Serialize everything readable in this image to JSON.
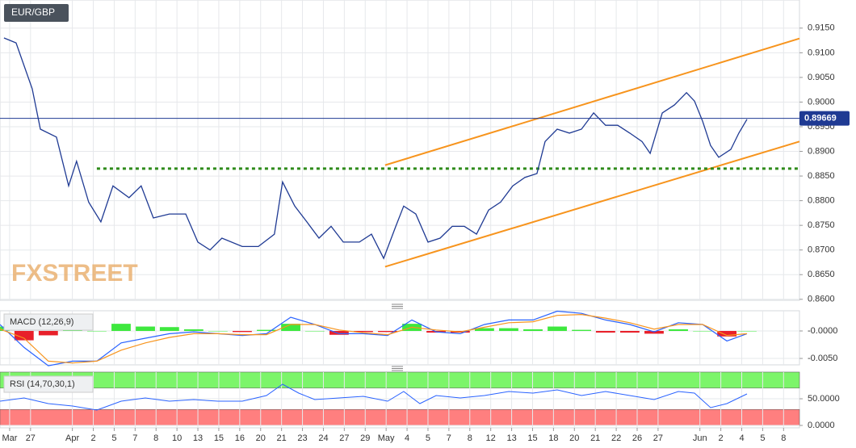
{
  "chart_data": [
    {
      "type": "line",
      "title": "EUR/GBP",
      "watermark": "FXSTREET",
      "color": "#1f3a93",
      "x": [
        -0.27,
        0.31,
        1.08,
        1.47,
        2.24,
        2.82,
        3.2,
        3.78,
        4.36,
        4.94,
        5.71,
        6.29,
        6.87,
        7.64,
        8.42,
        9.0,
        9.58,
        10.15,
        11.12,
        11.89,
        12.66,
        13.05,
        13.63,
        14.21,
        14.79,
        15.37,
        15.95,
        16.72,
        17.3,
        17.88,
        18.46,
        18.84,
        19.42,
        20.0,
        20.58,
        21.16,
        21.74,
        22.32,
        22.9,
        23.47,
        24.05,
        24.63,
        25.21,
        25.6,
        26.18,
        26.76,
        27.34,
        27.92,
        28.49,
        29.07,
        29.65,
        30.23,
        30.62,
        31.2,
        31.78,
        32.36,
        32.74,
        33.13,
        33.51,
        33.9,
        34.48,
        34.86,
        35.25
      ],
      "values": [
        0.913,
        0.912,
        0.9027,
        0.8945,
        0.8929,
        0.883,
        0.888,
        0.8797,
        0.8757,
        0.883,
        0.8806,
        0.883,
        0.8765,
        0.8773,
        0.8773,
        0.8716,
        0.87,
        0.8724,
        0.8707,
        0.8707,
        0.8732,
        0.8838,
        0.8789,
        0.8757,
        0.8724,
        0.8748,
        0.8716,
        0.8716,
        0.8732,
        0.8683,
        0.8748,
        0.8789,
        0.8773,
        0.8716,
        0.8724,
        0.8748,
        0.8748,
        0.8732,
        0.8781,
        0.8797,
        0.883,
        0.8847,
        0.8855,
        0.892,
        0.8945,
        0.8937,
        0.8945,
        0.8978,
        0.8953,
        0.8953,
        0.8937,
        0.892,
        0.8896,
        0.8978,
        0.8994,
        0.9019,
        0.9002,
        0.8961,
        0.8912,
        0.8888,
        0.8904,
        0.8937,
        0.8965
      ],
      "last_value": 0.89669,
      "last_color": "#1f3a93",
      "trendlines": [
        {
          "color": "#f7941d",
          "x": [
            17.95,
            37.76
          ],
          "values": [
            0.8872,
            0.9129
          ]
        },
        {
          "color": "#f7941d",
          "x": [
            17.95,
            37.76
          ],
          "values": [
            0.8666,
            0.892
          ]
        },
        {
          "color": "#2e8b1a",
          "style": "dotted",
          "x": [
            4.17,
            37.76
          ],
          "values": [
            0.8865,
            0.8865
          ]
        }
      ],
      "xlim": [
        -0.46,
        37.76
      ],
      "ylim": [
        0.8598,
        0.9207
      ],
      "yticks": [
        {
          "value": 0.86,
          "label": "0.8600"
        },
        {
          "value": 0.865,
          "label": "0.8650"
        },
        {
          "value": 0.87,
          "label": "0.8700"
        },
        {
          "value": 0.875,
          "label": "0.8750"
        },
        {
          "value": 0.88,
          "label": "0.8800"
        },
        {
          "value": 0.885,
          "label": "0.8850"
        },
        {
          "value": 0.89,
          "label": "0.8900"
        },
        {
          "value": 0.895,
          "label": "0.8950"
        },
        {
          "value": 0.9,
          "label": "0.9000"
        },
        {
          "value": 0.905,
          "label": "0.9050"
        },
        {
          "value": 0.91,
          "label": "0.9100"
        },
        {
          "value": 0.915,
          "label": "0.9150"
        }
      ],
      "grid": true
    },
    {
      "type": "macd",
      "title": "MACD (12,26,9)",
      "x": [
        -0.46,
        0.69,
        1.85,
        3.01,
        4.17,
        5.33,
        6.49,
        7.64,
        8.8,
        9.96,
        11.12,
        12.28,
        13.44,
        14.59,
        15.75,
        16.91,
        18.07,
        19.23,
        20.39,
        21.54,
        22.7,
        23.86,
        25.02,
        26.18,
        27.34,
        28.49,
        29.65,
        30.81,
        31.97,
        33.13,
        34.29,
        35.25
      ],
      "series": [
        {
          "color": "#2962ff",
          "values": [
            0.00117,
            -0.003,
            -0.00633,
            -0.0055,
            -0.0055,
            -0.00217,
            -0.00133,
            -0.0005,
            -0.00017,
            -0.0005,
            -0.00083,
            -0.0005,
            0.0025,
            0.00117,
            -0.0005,
            -0.0005,
            -0.00083,
            0.002,
            -0.00017,
            -0.0005,
            0.00117,
            0.002,
            0.002,
            0.0036,
            0.0032,
            0.002,
            0.00117,
            -0.00017,
            0.0015,
            0.00117,
            -0.00183,
            -0.0005
          ]
        },
        {
          "color": "#f7941d",
          "values": [
            0.00033,
            -0.00133,
            -0.0055,
            -0.00583,
            -0.0055,
            -0.0035,
            -0.00217,
            -0.00117,
            -0.0005,
            -0.0005,
            -0.00067,
            -0.00067,
            0.00117,
            0.00117,
            0.00017,
            -0.00033,
            -0.00067,
            0.00067,
            0.00017,
            -0.00017,
            0.00067,
            0.0015,
            0.00167,
            0.00283,
            0.003,
            0.00233,
            0.0015,
            0.00033,
            0.00117,
            0.00117,
            -0.00083,
            -0.0005
          ]
        }
      ],
      "histogram": {
        "values": [
          0.0008,
          -0.0017,
          -0.0008,
          0.0003,
          0,
          0.0013,
          0.0008,
          0.0007,
          0.0003,
          0,
          -0.0002,
          0.0002,
          0.0013,
          0,
          -0.0007,
          -0.0002,
          -0.0002,
          0.0013,
          -0.0003,
          -0.0003,
          0.0005,
          0.0005,
          0.0003,
          0.0008,
          0.0002,
          -0.0003,
          -0.0003,
          -0.0005,
          0.0003,
          0,
          -0.001,
          0
        ],
        "up_color": "#3ee83e",
        "down_color": "#e8202a"
      },
      "xlim": [
        -0.46,
        37.76
      ],
      "ylim": [
        -0.00617,
        0.00367
      ],
      "yticks": [
        {
          "value": 0,
          "label": "-0.0000"
        },
        {
          "value": -0.005,
          "label": "-0.0050"
        }
      ],
      "grid": true
    },
    {
      "type": "rsi",
      "title": "RSI (14,70,30,1)",
      "color": "#2962ff",
      "x": [
        -0.46,
        0.69,
        1.85,
        3.01,
        4.17,
        5.33,
        6.49,
        7.64,
        8.8,
        9.96,
        11.12,
        12.28,
        13.05,
        13.82,
        14.59,
        15.75,
        16.91,
        18.07,
        18.84,
        19.61,
        20.39,
        21.54,
        22.7,
        23.86,
        25.02,
        26.18,
        27.34,
        28.49,
        29.65,
        30.81,
        31.97,
        32.74,
        33.51,
        34.29,
        35.25
      ],
      "values": [
        45.5,
        51.5,
        40.9,
        36.4,
        28.8,
        45.5,
        51.5,
        45.5,
        48.5,
        45.5,
        45.5,
        56.1,
        77.3,
        60.6,
        48.5,
        51.5,
        54.5,
        45.5,
        63.6,
        40.9,
        56.1,
        51.5,
        56.1,
        63.6,
        60.6,
        66.7,
        56.1,
        63.6,
        56.1,
        48.5,
        63.6,
        60.6,
        33.3,
        40.9,
        59.1
      ],
      "bands": [
        {
          "range": [
            70,
            100
          ],
          "color": "#7cf56a"
        },
        {
          "range": [
            0,
            30
          ],
          "color": "#ff7f7f"
        }
      ],
      "xlim": [
        -0.46,
        37.76
      ],
      "ylim": [
        -4.5,
        100
      ],
      "yticks": [
        {
          "value": 50,
          "label": "50.0000"
        },
        {
          "value": 0,
          "label": "0.0000"
        }
      ],
      "grid": true,
      "xticks": [
        {
          "value": 0,
          "label": "Mar"
        },
        {
          "value": 1,
          "label": "27"
        },
        {
          "value": 3,
          "label": "Apr"
        },
        {
          "value": 4,
          "label": "2"
        },
        {
          "value": 5,
          "label": "5"
        },
        {
          "value": 6,
          "label": "7"
        },
        {
          "value": 7,
          "label": "8"
        },
        {
          "value": 8,
          "label": "10"
        },
        {
          "value": 9,
          "label": "13"
        },
        {
          "value": 10,
          "label": "15"
        },
        {
          "value": 11,
          "label": "16"
        },
        {
          "value": 12,
          "label": "20"
        },
        {
          "value": 13,
          "label": "21"
        },
        {
          "value": 14,
          "label": "23"
        },
        {
          "value": 15,
          "label": "24"
        },
        {
          "value": 16,
          "label": "27"
        },
        {
          "value": 17,
          "label": "29"
        },
        {
          "value": 18,
          "label": "May"
        },
        {
          "value": 19,
          "label": "4"
        },
        {
          "value": 20,
          "label": "5"
        },
        {
          "value": 21,
          "label": "7"
        },
        {
          "value": 22,
          "label": "8"
        },
        {
          "value": 23,
          "label": "12"
        },
        {
          "value": 24,
          "label": "13"
        },
        {
          "value": 25,
          "label": "15"
        },
        {
          "value": 26,
          "label": "18"
        },
        {
          "value": 27,
          "label": "20"
        },
        {
          "value": 28,
          "label": "21"
        },
        {
          "value": 29,
          "label": "22"
        },
        {
          "value": 30,
          "label": "26"
        },
        {
          "value": 31,
          "label": "27"
        },
        {
          "value": 33,
          "label": "Jun"
        },
        {
          "value": 34,
          "label": "2"
        },
        {
          "value": 35,
          "label": "4"
        },
        {
          "value": 36,
          "label": "5"
        },
        {
          "value": 37,
          "label": "8"
        }
      ]
    }
  ]
}
